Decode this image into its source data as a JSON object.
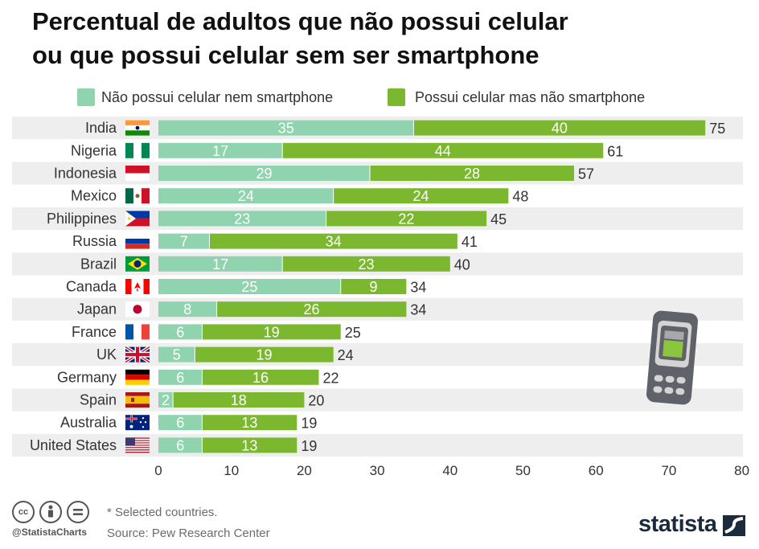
{
  "title_line1": "Percentual de adultos que não possui celular",
  "title_line2": "ou que possui celular sem ser smartphone",
  "legend": [
    {
      "label": "Não possui celular nem smartphone",
      "color": "#8fd3af"
    },
    {
      "label": "Possui celular mas não smartphone",
      "color": "#7cb82f"
    }
  ],
  "chart_data": {
    "type": "bar",
    "orientation": "horizontal",
    "stacked": true,
    "categories": [
      "India",
      "Nigeria",
      "Indonesia",
      "Mexico",
      "Philippines",
      "Russia",
      "Brazil",
      "Canada",
      "Japan",
      "France",
      "UK",
      "Germany",
      "Spain",
      "Australia",
      "United States"
    ],
    "series": [
      {
        "name": "Não possui celular nem smartphone",
        "color": "#8fd3af",
        "values": [
          35,
          17,
          29,
          24,
          23,
          7,
          17,
          25,
          8,
          6,
          5,
          6,
          2,
          6,
          6
        ]
      },
      {
        "name": "Possui celular mas não smartphone",
        "color": "#7cb82f",
        "values": [
          40,
          44,
          28,
          24,
          22,
          34,
          23,
          9,
          26,
          19,
          19,
          16,
          18,
          13,
          13
        ]
      }
    ],
    "totals": [
      75,
      61,
      57,
      48,
      45,
      41,
      40,
      34,
      34,
      25,
      24,
      22,
      20,
      19,
      19
    ],
    "xlim": [
      0,
      80
    ],
    "xticks": [
      0,
      10,
      20,
      30,
      40,
      50,
      60,
      70,
      80
    ],
    "grid": false,
    "legend_position": "top"
  },
  "footer": {
    "note": "* Selected countries.",
    "source": "Source: Pew Research Center",
    "handle": "@StatistaCharts",
    "cc_icons": [
      "cc",
      "by",
      "nd"
    ],
    "brand": "statista"
  },
  "decoration": {
    "phone_icon": "feature-phone-icon"
  }
}
